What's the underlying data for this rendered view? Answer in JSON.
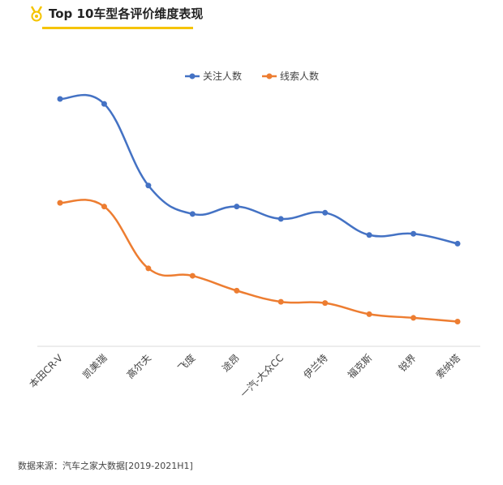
{
  "header": {
    "title": "Top 10车型各评价维度表现"
  },
  "colors": {
    "accent": "#f5c400",
    "series1": "#4472c4",
    "series2": "#ed7d31"
  },
  "chart_data": {
    "type": "line",
    "title": "Top 10车型各评价维度表现",
    "categories": [
      "本田CR-V",
      "凯美瑞",
      "高尔夫",
      "飞度",
      "途昂",
      "一汽-大众CC",
      "伊兰特",
      "福克斯",
      "锐界",
      "索纳塔"
    ],
    "series": [
      {
        "name": "关注人数",
        "values": [
          100,
          98,
          65,
          53.5,
          56.5,
          51.5,
          54,
          45,
          45.5,
          41.5
        ]
      },
      {
        "name": "线索人数",
        "values": [
          58,
          56.5,
          31.5,
          28.5,
          22.5,
          18,
          17.5,
          13,
          11.5,
          10
        ]
      }
    ],
    "ylim": [
      0,
      105
    ],
    "xlabel": "",
    "ylabel": "",
    "legend": "top-center",
    "grid": false
  },
  "footer": {
    "source": "数据来源：汽车之家大数据[2019-2021H1]"
  }
}
